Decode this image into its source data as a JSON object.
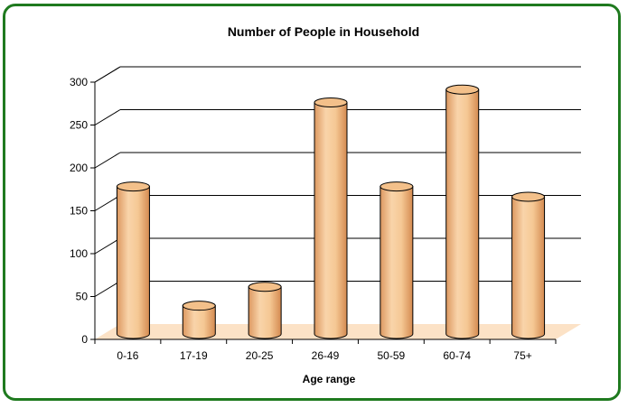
{
  "chart_data": {
    "type": "bar",
    "title": "Number of People in Household",
    "xlabel": "Age range",
    "ylabel": "",
    "categories": [
      "0-16",
      "17-19",
      "20-25",
      "26-49",
      "50-59",
      "60-74",
      "75+"
    ],
    "values": [
      172,
      33,
      55,
      270,
      172,
      285,
      160
    ],
    "ylim": [
      0,
      300
    ],
    "yticks": [
      0,
      50,
      100,
      150,
      200,
      250,
      300
    ],
    "grid": true,
    "legend": "none",
    "colors": {
      "bar_front_light": "#f8d2a6",
      "bar_front_dark": "#d89056",
      "bar_top": "#f3c08a",
      "floor": "#fce2c6",
      "frame": "#1f7a1f",
      "gridline": "#000000"
    }
  }
}
